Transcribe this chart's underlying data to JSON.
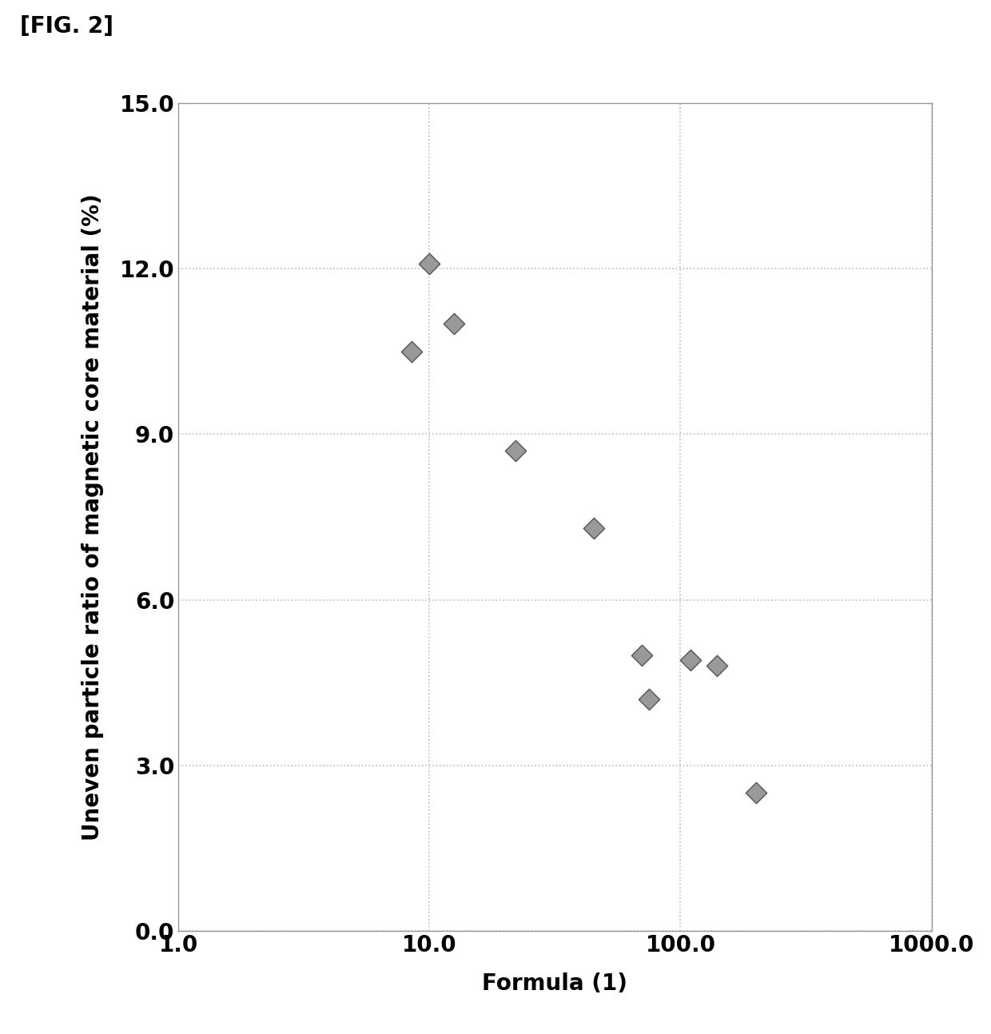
{
  "title": "[FIG. 2]",
  "xlabel": "Formula (1)",
  "ylabel": "Uneven particle ratio of magnetic core material (%)",
  "x_data": [
    10.0,
    12.5,
    8.5,
    22.0,
    45.0,
    70.0,
    75.0,
    110.0,
    140.0,
    200.0
  ],
  "y_data": [
    12.1,
    11.0,
    10.5,
    8.7,
    7.3,
    5.0,
    4.2,
    4.9,
    4.8,
    2.5
  ],
  "xlim": [
    1.0,
    1000.0
  ],
  "ylim": [
    0.0,
    15.0
  ],
  "yticks": [
    0.0,
    3.0,
    6.0,
    9.0,
    12.0,
    15.0
  ],
  "xticks": [
    1.0,
    10.0,
    100.0,
    1000.0
  ],
  "xticklabels": [
    "1.0",
    "10.0",
    "100.0",
    "1000.0"
  ],
  "yticklabels": [
    "0.0",
    "3.0",
    "6.0",
    "9.0",
    "12.0",
    "15.0"
  ],
  "marker_color": "#999999",
  "marker_size": 180,
  "grid_color": "#bbbbbb",
  "background_color": "#ffffff",
  "fig_width": 12.4,
  "fig_height": 12.94,
  "title_fontsize": 20,
  "label_fontsize": 20,
  "tick_fontsize": 20
}
